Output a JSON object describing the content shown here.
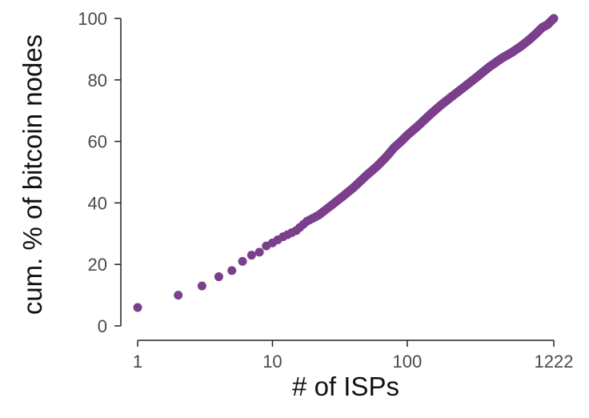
{
  "chart_data": {
    "type": "scatter",
    "title": "",
    "xlabel": "# of ISPs",
    "ylabel": "cum. % of bitcoin nodes",
    "x_scale": "log",
    "xlim": [
      1,
      1222
    ],
    "ylim": [
      0,
      100
    ],
    "x_ticks": [
      1,
      10,
      100,
      1222
    ],
    "x_tick_labels": [
      "1",
      "10",
      "100",
      "1222"
    ],
    "y_ticks": [
      0,
      20,
      40,
      60,
      80,
      100
    ],
    "y_tick_labels": [
      "0",
      "20",
      "40",
      "60",
      "80",
      "100"
    ],
    "grid": false,
    "legend": "none",
    "marker_color": "#7b3f8c",
    "points": [
      [
        1,
        6
      ],
      [
        2,
        10
      ],
      [
        3,
        13
      ],
      [
        4,
        16
      ],
      [
        5,
        18
      ],
      [
        6,
        21
      ],
      [
        7,
        23
      ],
      [
        8,
        24
      ],
      [
        9,
        26
      ],
      [
        10,
        27
      ],
      [
        12,
        29
      ],
      [
        15,
        31
      ],
      [
        18,
        34
      ],
      [
        22,
        36
      ],
      [
        27,
        39
      ],
      [
        33,
        42
      ],
      [
        40,
        45
      ],
      [
        50,
        49
      ],
      [
        60,
        52
      ],
      [
        70,
        55
      ],
      [
        80,
        58
      ],
      [
        90,
        60
      ],
      [
        100,
        62
      ],
      [
        120,
        65
      ],
      [
        150,
        69
      ],
      [
        180,
        72
      ],
      [
        220,
        75
      ],
      [
        270,
        78
      ],
      [
        330,
        81
      ],
      [
        400,
        84
      ],
      [
        500,
        87
      ],
      [
        600,
        89
      ],
      [
        700,
        91
      ],
      [
        800,
        93
      ],
      [
        900,
        95
      ],
      [
        1000,
        97
      ],
      [
        1100,
        98
      ],
      [
        1222,
        100
      ]
    ]
  }
}
